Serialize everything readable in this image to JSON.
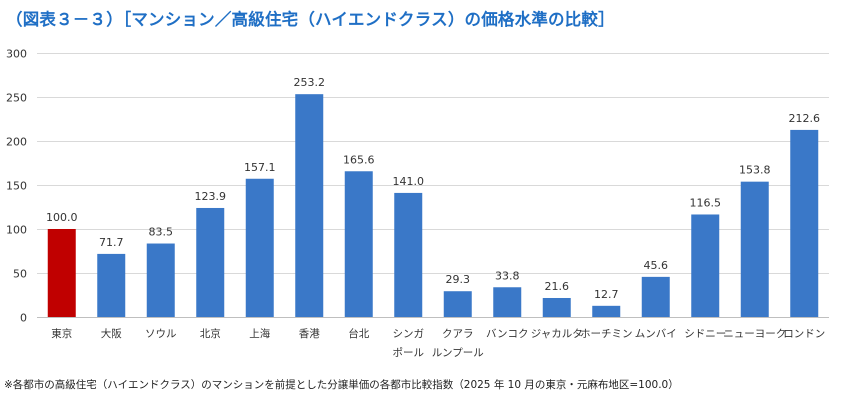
{
  "title": "（図表３－３）［マンション／高級住宅（ハイエンドクラス）の価格水準の比較］",
  "note": "※各都市の高級住宅（ハイエンドクラス）のマンションを前提とした分譲単価の各都市比較指数（2025 年 10 月の東京・元麻布地区=100.0）",
  "colors": {
    "highlight": "#c00000",
    "bar": "#3a78c8",
    "grid": "#d9d9d9",
    "title": "#1f6fc5"
  },
  "chart_data": {
    "type": "bar",
    "title": "（図表３－３）［マンション／高級住宅（ハイエンドクラス）の価格水準の比較］",
    "xlabel": "",
    "ylabel": "",
    "ylim": [
      0,
      300
    ],
    "yticks": [
      "0",
      "50",
      "100",
      "150",
      "200",
      "250",
      "300"
    ],
    "grid": true,
    "legend": "none",
    "categories": [
      [
        "東京"
      ],
      [
        "大阪"
      ],
      [
        "ソウル"
      ],
      [
        "北京"
      ],
      [
        "上海"
      ],
      [
        "香港"
      ],
      [
        "台北"
      ],
      [
        "シンガ",
        "ポール"
      ],
      [
        "クアラ",
        "ルンプール"
      ],
      [
        "バンコク"
      ],
      [
        "ジャカルタ"
      ],
      [
        "ホーチミン"
      ],
      [
        "ムンバイ"
      ],
      [
        "シドニー"
      ],
      [
        "ニューヨーク"
      ],
      [
        "ロンドン"
      ]
    ],
    "values": [
      100.0,
      71.7,
      83.5,
      123.9,
      157.1,
      253.2,
      165.6,
      141.0,
      29.3,
      33.8,
      21.6,
      12.7,
      45.6,
      116.5,
      153.8,
      212.6
    ],
    "value_labels": [
      "100.0",
      "71.7",
      "83.5",
      "123.9",
      "157.1",
      "253.2",
      "165.6",
      "141.0",
      "29.3",
      "33.8",
      "21.6",
      "12.7",
      "45.6",
      "116.5",
      "153.8",
      "212.6"
    ],
    "highlight_index": 0
  }
}
